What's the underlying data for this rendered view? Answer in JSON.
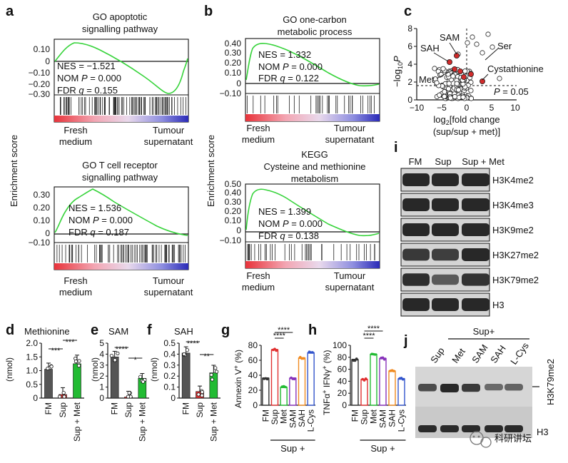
{
  "panel_labels": {
    "a": "a",
    "b": "b",
    "c": "c",
    "d": "d",
    "e": "e",
    "f": "f",
    "g": "g",
    "h": "h",
    "i": "i",
    "j": "j"
  },
  "shared": {
    "enrichment_score_label": "Enrichment score",
    "fresh_medium_line1": "Fresh",
    "fresh_medium_line2": "medium",
    "tumour_line1": "Tumour",
    "tumour_line2": "supernatant"
  },
  "gsea": [
    {
      "id": "a1",
      "title_lines": [
        "GO apoptotic",
        "signalling pathway"
      ],
      "nes": "NES = −1.521",
      "nom_prefix": "NOM ",
      "nom_p": "P",
      "nom_val": " = 0.000",
      "fdr_prefix": "FDR ",
      "fdr_q": "q",
      "fdr_val": " = 0.155",
      "ticks": [
        "0.10",
        "0",
        "−0.10",
        "−0.20",
        "−0.30"
      ]
    },
    {
      "id": "a2",
      "title_lines": [
        "GO T cell receptor",
        "signalling pathway"
      ],
      "nes": "NES = 1.536",
      "nom_prefix": "NOM ",
      "nom_p": "P",
      "nom_val": " = 0.000",
      "fdr_prefix": "FDR ",
      "fdr_q": "q",
      "fdr_val": " = 0.187",
      "ticks": [
        "0.30",
        "0.20",
        "0.10",
        "0",
        "−0.10"
      ]
    },
    {
      "id": "b1",
      "title_lines": [
        "GO one-carbon",
        "metabolic process"
      ],
      "nes": "NES = 1.332",
      "nom_prefix": "NOM ",
      "nom_p": "P",
      "nom_val": " = 0.000",
      "fdr_prefix": "FDR ",
      "fdr_q": "q",
      "fdr_val": " = 0.122",
      "ticks": [
        "0.40",
        "0.30",
        "0.20",
        "0.10",
        "0",
        "−0.10"
      ]
    },
    {
      "id": "b2",
      "title_lines": [
        "KEGG",
        "Cysteine and methionine",
        "metabolism"
      ],
      "nes": "NES = 1.399",
      "nom_prefix": "NOM ",
      "nom_p": "P",
      "nom_val": " = 0.000",
      "fdr_prefix": "FDR ",
      "fdr_q": "q",
      "fdr_val": " = 0.138",
      "ticks": [
        "0.50",
        "0.40",
        "0.30",
        "0.20",
        "0.10",
        "0",
        "−0.10"
      ]
    }
  ],
  "volcano": {
    "ylabel_prefix": "−log",
    "ylabel_sub": "10",
    "ylabel_var": "P",
    "xlabel_line1_prefix": "log",
    "xlabel_line1_sub": "2",
    "xlabel_line1_rest": "[fold change",
    "xlabel_line2": "(sup/sup + met)]",
    "yticks": [
      "0",
      "2",
      "4",
      "6",
      "8"
    ],
    "xticks": [
      "−10",
      "−5",
      "0",
      "5",
      "10"
    ],
    "threshold_prefix": "P",
    "threshold_val": " = 0.05",
    "labels": {
      "sam": "SAM",
      "sah": "SAH",
      "met": "Met",
      "ser": "Ser",
      "cys": "Cystathionine"
    }
  },
  "western_i": {
    "columns": [
      "FM",
      "Sup",
      "Sup + Met"
    ],
    "rows": [
      "H3K4me2",
      "H3K4me3",
      "H3K9me2",
      "H3K27me2",
      "H3K79me2",
      "H3"
    ]
  },
  "western_j": {
    "header": "Sup+",
    "lanes": [
      "Sup",
      "Met",
      "SAM",
      "SAH",
      "L-Cys"
    ],
    "side_label": "H3K79me2",
    "bottom_label": "H3"
  },
  "bar_panels": {
    "d": {
      "title": "Methionine",
      "ylabel": "(nmol)",
      "yticks": [
        "0",
        "0.5",
        "1.0",
        "1.5",
        "2.0"
      ],
      "categories": [
        "FM",
        "Sup",
        "Sup + Met"
      ],
      "sig": [
        "***",
        "***"
      ]
    },
    "e": {
      "title": "SAM",
      "ylabel": "(nmol)",
      "yticks": [
        "0",
        "1",
        "2",
        "3",
        "4",
        "5"
      ],
      "categories": [
        "FM",
        "Sup",
        "Sup + Met"
      ],
      "sig": [
        "****",
        "*"
      ]
    },
    "f": {
      "title": "SAH",
      "ylabel": "(nmol)",
      "yticks": [
        "0",
        "0.1",
        "0.2",
        "0.3",
        "0.4",
        "0.5"
      ],
      "categories": [
        "FM",
        "Sup",
        "Sup + Met"
      ],
      "sig": [
        "****",
        "**"
      ]
    },
    "g": {
      "ylabel_prefix": "Annexin V",
      "ylabel_sup": "+",
      "ylabel_rest": " (%)",
      "yticks": [
        "0",
        "20",
        "40",
        "60",
        "80"
      ],
      "categories": [
        "FM",
        "Sup",
        "Met",
        "SAM",
        "SAH",
        "L-Cys"
      ],
      "sig": [
        "****",
        "****"
      ],
      "group": "Sup +"
    },
    "h": {
      "ylabel_prefix": "TNFα",
      "ylabel_sup1": "+",
      "ylabel_mid": " IFNγ",
      "ylabel_sup2": "+",
      "ylabel_rest": " (%)",
      "yticks": [
        "0",
        "20",
        "40",
        "60",
        "80",
        "100"
      ],
      "categories": [
        "FM",
        "Sup",
        "Met",
        "SAM",
        "SAH",
        "L-Cys"
      ],
      "sig": [
        "****",
        "****"
      ],
      "group": "Sup +"
    }
  },
  "chart_data": [
    {
      "type": "bar",
      "panel": "d",
      "title": "Methionine",
      "ylabel": "(nmol)",
      "ylim": [
        0,
        2.0
      ],
      "categories": [
        "FM",
        "Sup",
        "Sup + Met"
      ],
      "values": [
        1.05,
        0.13,
        1.25
      ],
      "colors": [
        "#555555",
        "#e03030",
        "#22bb33"
      ]
    },
    {
      "type": "bar",
      "panel": "e",
      "title": "SAM",
      "ylabel": "(nmol)",
      "ylim": [
        0,
        5
      ],
      "categories": [
        "FM",
        "Sup",
        "Sup + Met"
      ],
      "values": [
        3.75,
        0.1,
        1.8
      ],
      "colors": [
        "#555555",
        "#e03030",
        "#22bb33"
      ]
    },
    {
      "type": "bar",
      "panel": "f",
      "title": "SAH",
      "ylabel": "(nmol)",
      "ylim": [
        0,
        0.5
      ],
      "categories": [
        "FM",
        "Sup",
        "Sup + Met"
      ],
      "values": [
        0.41,
        0.06,
        0.23
      ],
      "colors": [
        "#555555",
        "#e03030",
        "#22bb33"
      ]
    },
    {
      "type": "bar",
      "panel": "g",
      "ylabel": "Annexin V+ (%)",
      "ylim": [
        0,
        80
      ],
      "categories": [
        "FM",
        "Sup",
        "Met",
        "SAM",
        "SAH",
        "L-Cys"
      ],
      "values": [
        36,
        74,
        24,
        36,
        63,
        70
      ],
      "colors": [
        "#333333",
        "#e03030",
        "#22bb33",
        "#8833bb",
        "#f08a20",
        "#3355cc"
      ]
    },
    {
      "type": "bar",
      "panel": "h",
      "ylabel": "TNFα+ IFNγ+ (%)",
      "ylim": [
        0,
        100
      ],
      "categories": [
        "FM",
        "Sup",
        "Met",
        "SAM",
        "SAH",
        "L-Cys"
      ],
      "values": [
        76,
        43,
        85,
        78,
        57,
        44
      ],
      "colors": [
        "#333333",
        "#e03030",
        "#22bb33",
        "#8833bb",
        "#f08a20",
        "#3355cc"
      ]
    }
  ],
  "watermark": {
    "text": "科研讲坛"
  }
}
